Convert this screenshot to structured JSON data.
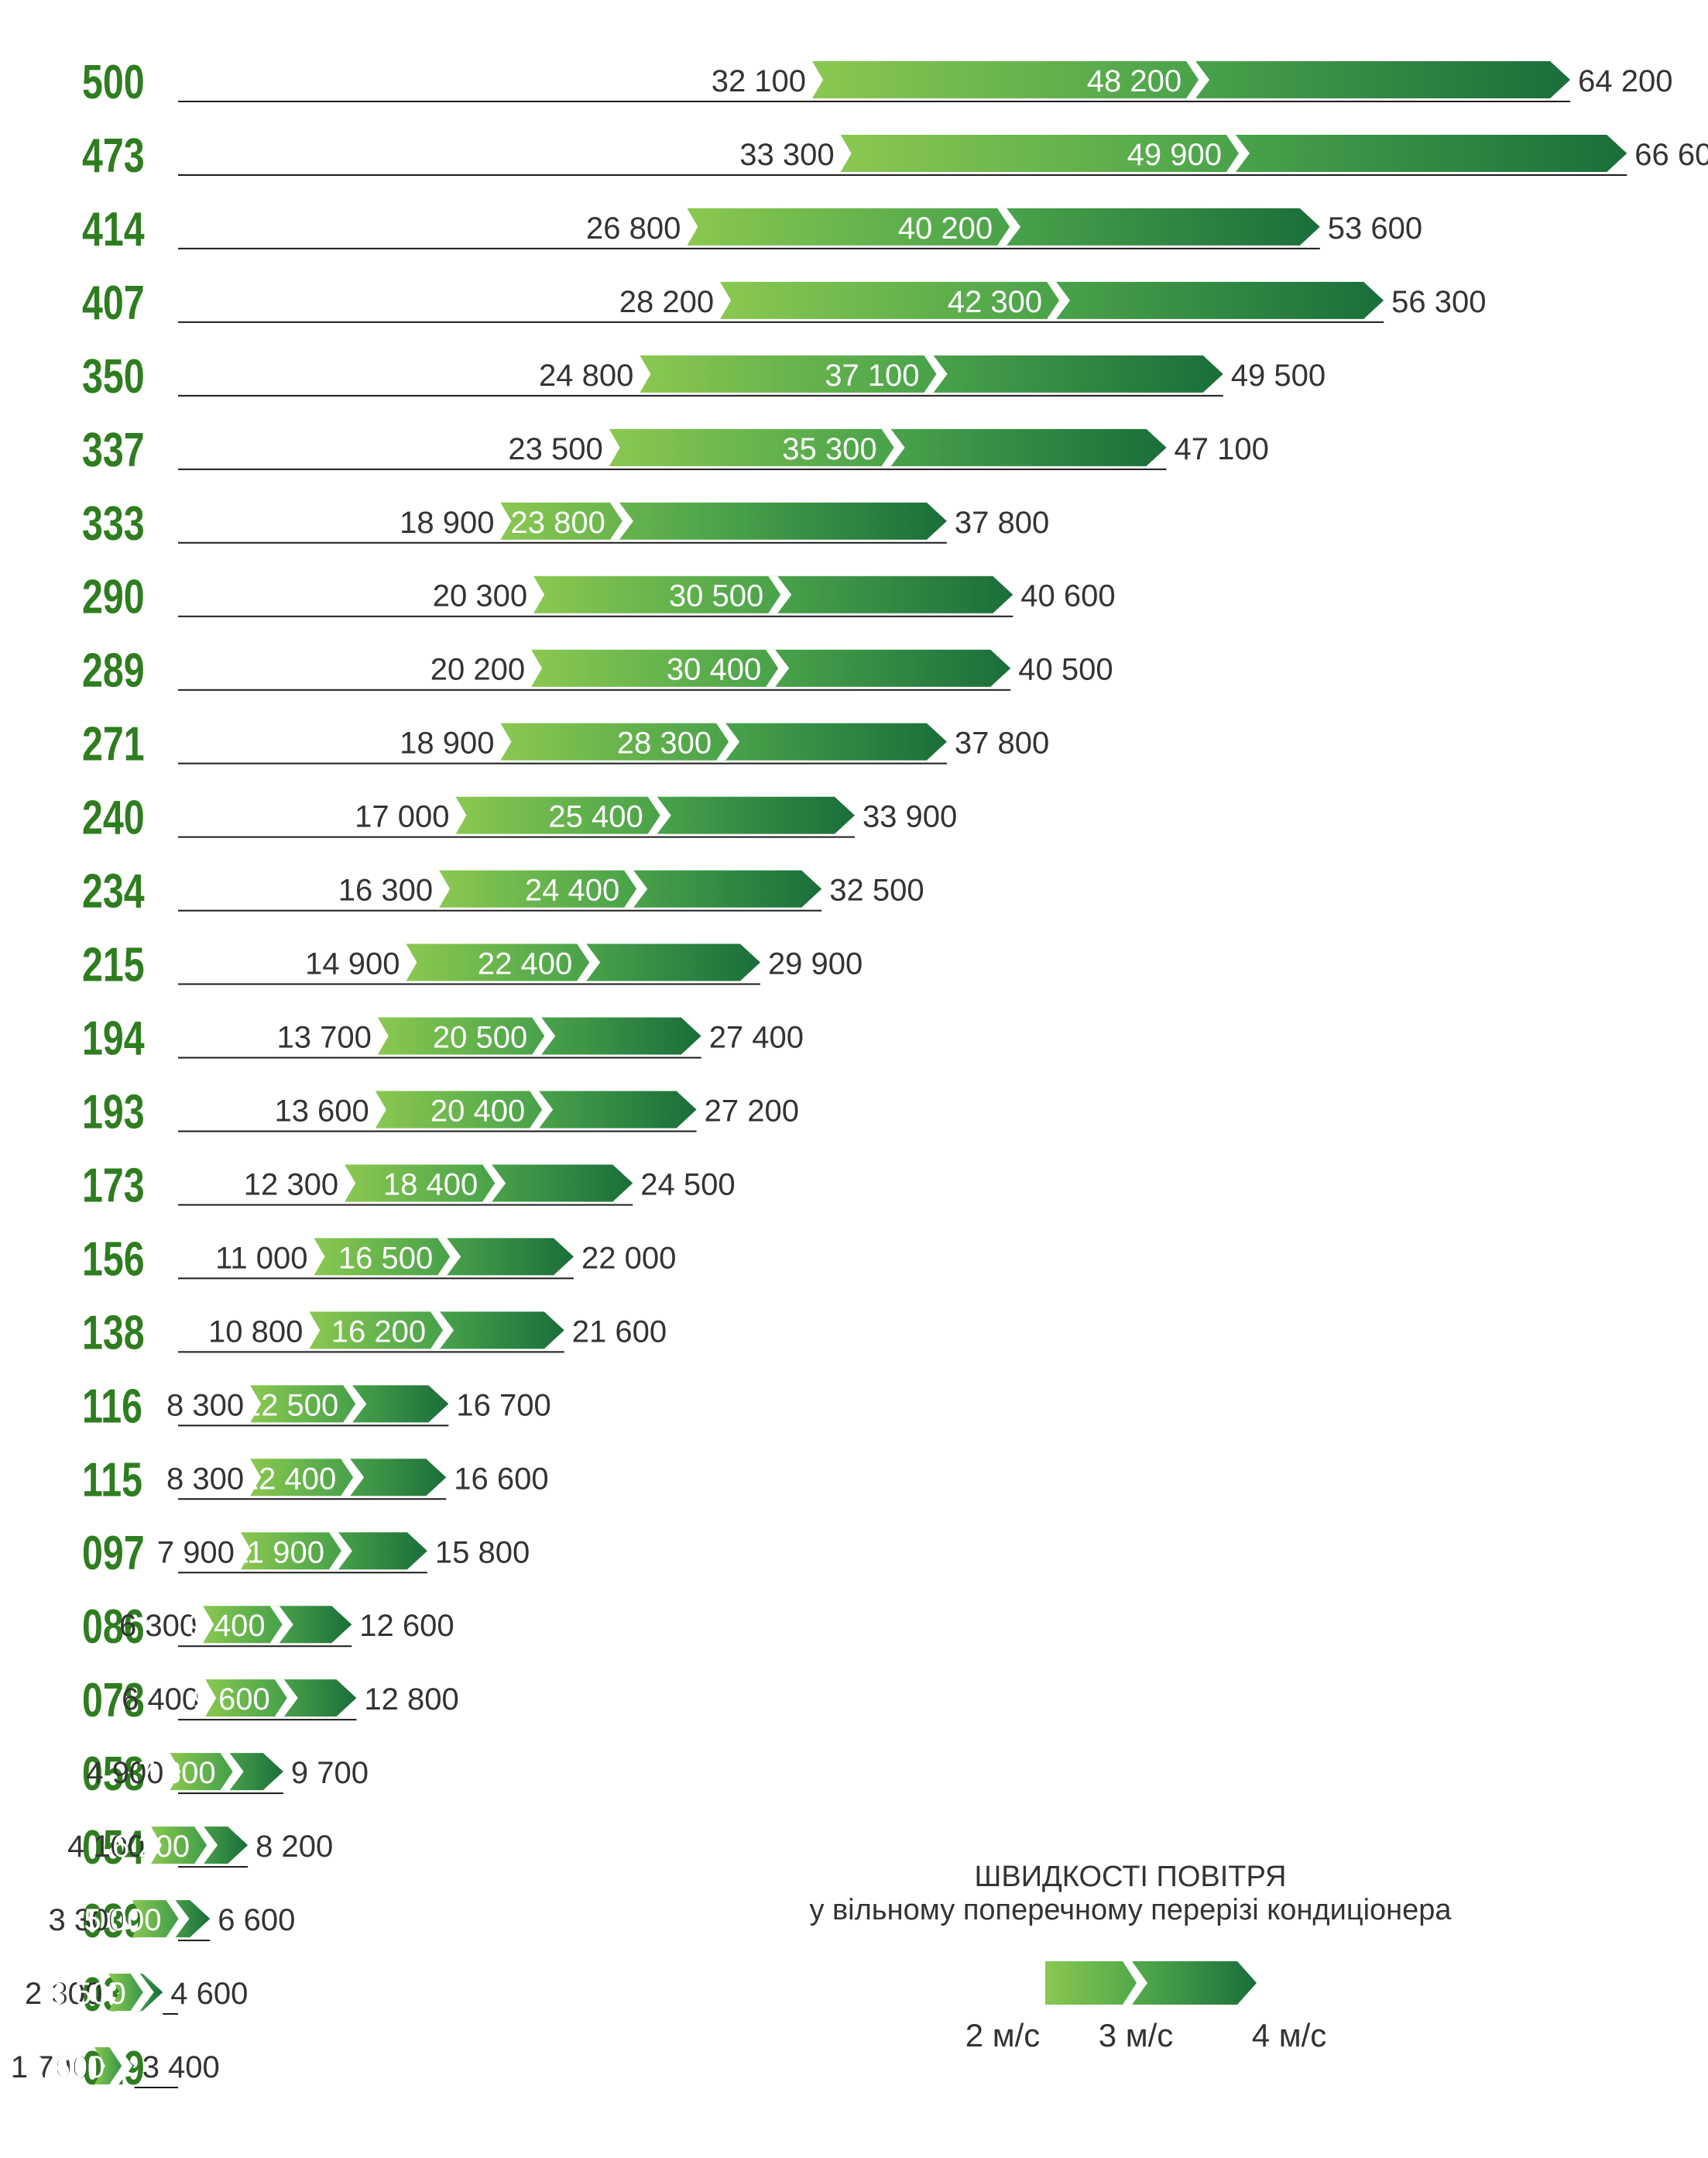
{
  "chart_data": {
    "type": "bar",
    "title": "ШВИДКОСТІ ПОВІТРЯ",
    "subtitle": "у вільному поперечному перерізі кондиціонера",
    "categories": [
      "500",
      "473",
      "414",
      "407",
      "350",
      "337",
      "333",
      "290",
      "289",
      "271",
      "240",
      "234",
      "215",
      "194",
      "193",
      "173",
      "156",
      "138",
      "116",
      "115",
      "097",
      "086",
      "078",
      "058",
      "054",
      "039",
      "034",
      "019"
    ],
    "series": [
      {
        "name": "2 м/с",
        "values": [
          32100,
          33300,
          26800,
          28200,
          24800,
          23500,
          18900,
          20300,
          20200,
          18900,
          17000,
          16300,
          14900,
          13700,
          13600,
          12300,
          11000,
          10800,
          8300,
          8300,
          7900,
          6300,
          6400,
          4900,
          4100,
          3300,
          2300,
          1700
        ]
      },
      {
        "name": "3 м/с",
        "values": [
          48200,
          49900,
          40200,
          42300,
          37100,
          35300,
          23800,
          30500,
          30400,
          28300,
          25400,
          24400,
          22400,
          20500,
          20400,
          18400,
          16500,
          16200,
          12500,
          12400,
          11900,
          9400,
          9600,
          7300,
          6200,
          5000,
          3500,
          2600
        ]
      },
      {
        "name": "4 м/с",
        "values": [
          64200,
          66600,
          53600,
          56300,
          49500,
          47100,
          37800,
          40600,
          40500,
          37800,
          33900,
          32500,
          29900,
          27400,
          27200,
          24500,
          22000,
          21600,
          16700,
          16600,
          15800,
          12600,
          12800,
          9700,
          8200,
          6600,
          4600,
          3400
        ]
      }
    ],
    "value_labels": {
      "v2": [
        "32 100",
        "33 300",
        "26 800",
        "28 200",
        "24 800",
        "23 500",
        "18 900",
        "20 300",
        "20 200",
        "18 900",
        "17 000",
        "16 300",
        "14 900",
        "13 700",
        "13 600",
        "12 300",
        "11 000",
        "10 800",
        "8 300",
        "8 300",
        "7 900",
        "6 300",
        "6 400",
        "4 900",
        "4 100",
        "3 300",
        "2 300",
        "1 700"
      ],
      "v3": [
        "48 200",
        "49 900",
        "40 200",
        "42 300",
        "37 100",
        "35 300",
        "23 800",
        "30 500",
        "30 400",
        "28 300",
        "25 400",
        "24 400",
        "22 400",
        "20 500",
        "20 400",
        "18 400",
        "16 500",
        "16 200",
        "12 500",
        "12 400",
        "11 900",
        "9 400",
        "9 600",
        "7 300",
        "6 200",
        "5 000",
        "3 500",
        "2 600"
      ],
      "v4": [
        "64 200",
        "66 600",
        "53 600",
        "56 300",
        "49 500",
        "47 100",
        "37 800",
        "40 600",
        "40 500",
        "37 800",
        "33 900",
        "32 500",
        "29 900",
        "27 400",
        "27 200",
        "24 500",
        "22 000",
        "21 600",
        "16 700",
        "16 600",
        "15 800",
        "12 600",
        "12 800",
        "9 700",
        "8 200",
        "6 600",
        "4 600",
        "3 400"
      ]
    },
    "legend": {
      "title": "ШВИДКОСТІ ПОВІТРЯ",
      "subtitle": "у вільному поперечному перерізі кондиціонера",
      "labels": [
        "2 м/с",
        "3 м/с",
        "4 м/с"
      ],
      "position": "bottom-right"
    },
    "colors": {
      "model_label": "#2e7d1f",
      "light_green": "#8ac850",
      "mid_green": "#4aa34a",
      "dark_green": "#1a6e3a",
      "baseline": "#1a1a1a",
      "value_text": "#333333",
      "white_text": "#ffffff"
    }
  }
}
